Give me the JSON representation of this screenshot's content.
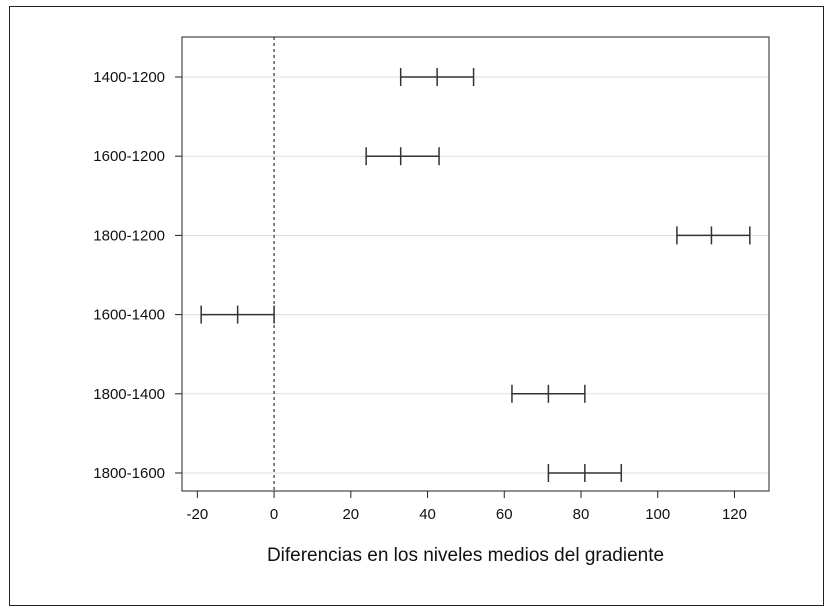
{
  "chart_data": {
    "type": "interval",
    "xlabel": "Diferencias en los niveles medios del gradiente",
    "ylabel": "",
    "xlim": [
      -24,
      129
    ],
    "xticks": [
      -20,
      0,
      20,
      40,
      60,
      80,
      100,
      120
    ],
    "reference_line": {
      "x": 0,
      "style": "dashed"
    },
    "grid": "horizontal",
    "comparisons": [
      {
        "label": "1400-1200",
        "lower": 33,
        "estimate": 42.5,
        "upper": 52
      },
      {
        "label": "1600-1200",
        "lower": 24,
        "estimate": 33,
        "upper": 43
      },
      {
        "label": "1800-1200",
        "lower": 105,
        "estimate": 114,
        "upper": 124
      },
      {
        "label": "1600-1400",
        "lower": -19,
        "estimate": -9.5,
        "upper": 0
      },
      {
        "label": "1800-1400",
        "lower": 62,
        "estimate": 71.5,
        "upper": 81
      },
      {
        "label": "1800-1600",
        "lower": 71.5,
        "estimate": 81,
        "upper": 90.5
      }
    ]
  },
  "colors": {
    "interval": "#333333",
    "grid": "#dddddd",
    "axis": "#222222",
    "reference": "#333333"
  }
}
